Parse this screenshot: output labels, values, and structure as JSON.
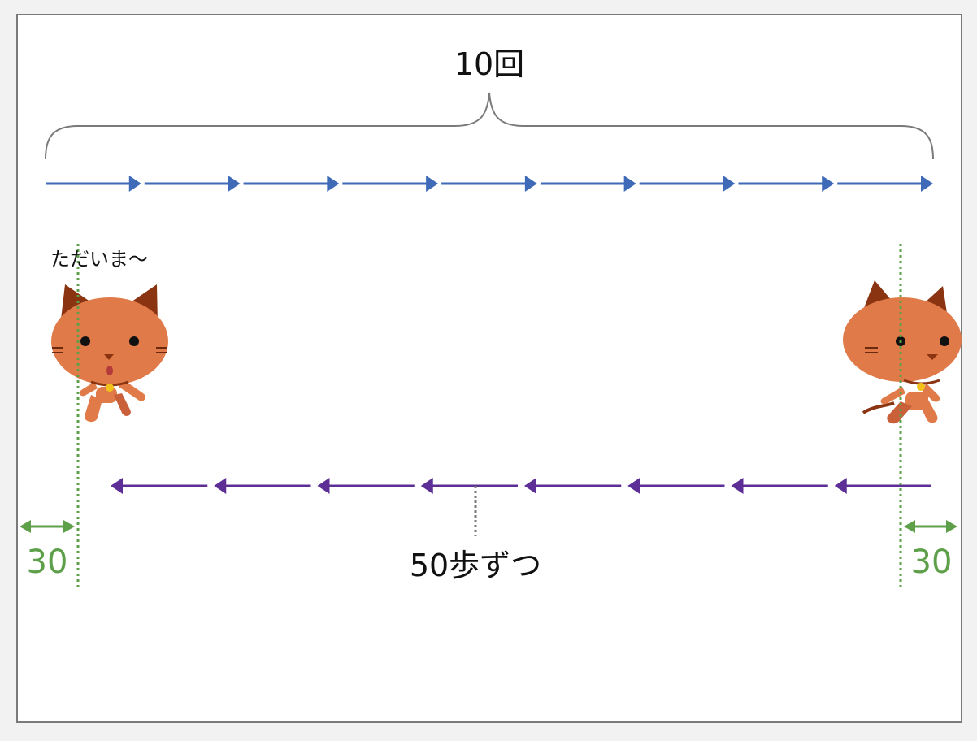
{
  "labels": {
    "repeat_count": "10回",
    "speech": "ただいま〜",
    "step_size": "50歩ずつ",
    "margin_left": "30",
    "margin_right": "30"
  },
  "diagram": {
    "forward_arrow_count": 9,
    "backward_arrow_count": 8
  },
  "colors": {
    "forward_arrow": "#3f6ab8",
    "backward_arrow": "#5d2f96",
    "margin": "#5ea04a",
    "brace": "#7a7a7a",
    "cat_body": "#e07a48",
    "cat_ear": "#8b3412",
    "collar_bell": "#f2c21b"
  },
  "icons": {
    "cat_left": "cat-icon",
    "cat_right": "cat-icon"
  }
}
